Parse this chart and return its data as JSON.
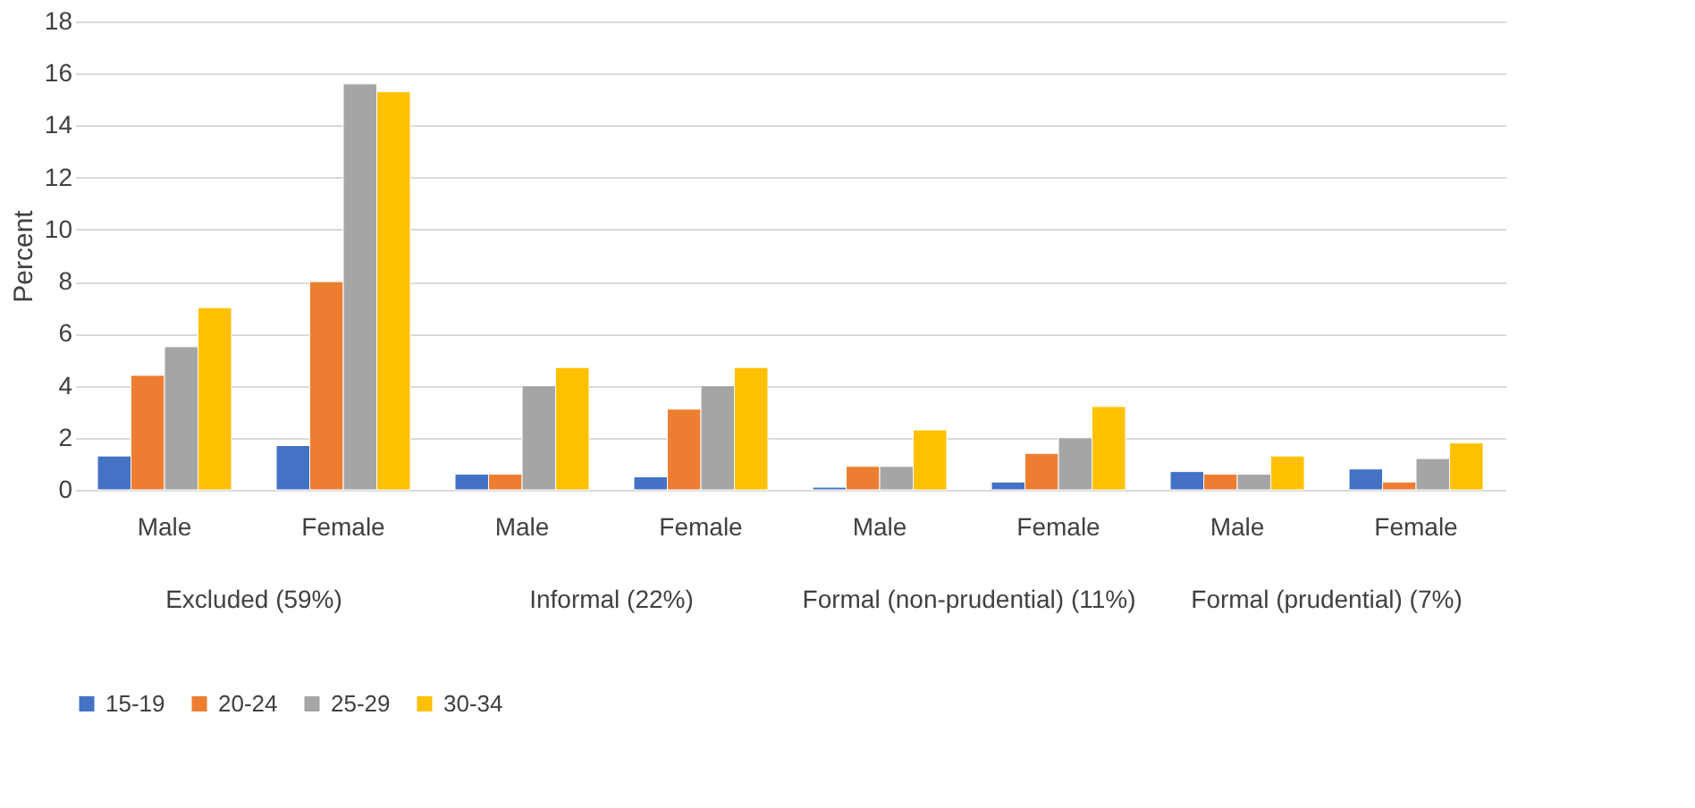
{
  "chart_data": {
    "type": "bar",
    "ylabel": "Percent",
    "categories": [
      "Male",
      "Female",
      "Male",
      "Female",
      "Male",
      "Female",
      "Male",
      "Female"
    ],
    "annotations": [
      "Excluded (59%)",
      "Informal (22%)",
      "Formal (non-prudential) (11%)",
      "Formal (prudential) (7%)"
    ],
    "series": [
      {
        "name": "15-19",
        "color": "#4472c4",
        "values": [
          1.3,
          1.7,
          0.6,
          0.5,
          0.1,
          0.3,
          0.7,
          0.8
        ]
      },
      {
        "name": "20-24",
        "color": "#ed7d31",
        "values": [
          4.4,
          8.0,
          0.6,
          3.1,
          0.9,
          1.4,
          0.6,
          0.3
        ]
      },
      {
        "name": "25-29",
        "color": "#a5a5a5",
        "values": [
          5.5,
          15.6,
          4.0,
          4.0,
          0.9,
          2.0,
          0.6,
          1.2
        ]
      },
      {
        "name": "30-34",
        "color": "#ffc000",
        "values": [
          7.0,
          15.3,
          4.7,
          4.7,
          2.3,
          3.2,
          1.3,
          1.8
        ]
      }
    ],
    "ylim": [
      0,
      18
    ],
    "yticks": [
      0,
      2,
      4,
      6,
      8,
      10,
      12,
      14,
      16,
      18
    ],
    "grid": "y",
    "legend": "bottom"
  }
}
